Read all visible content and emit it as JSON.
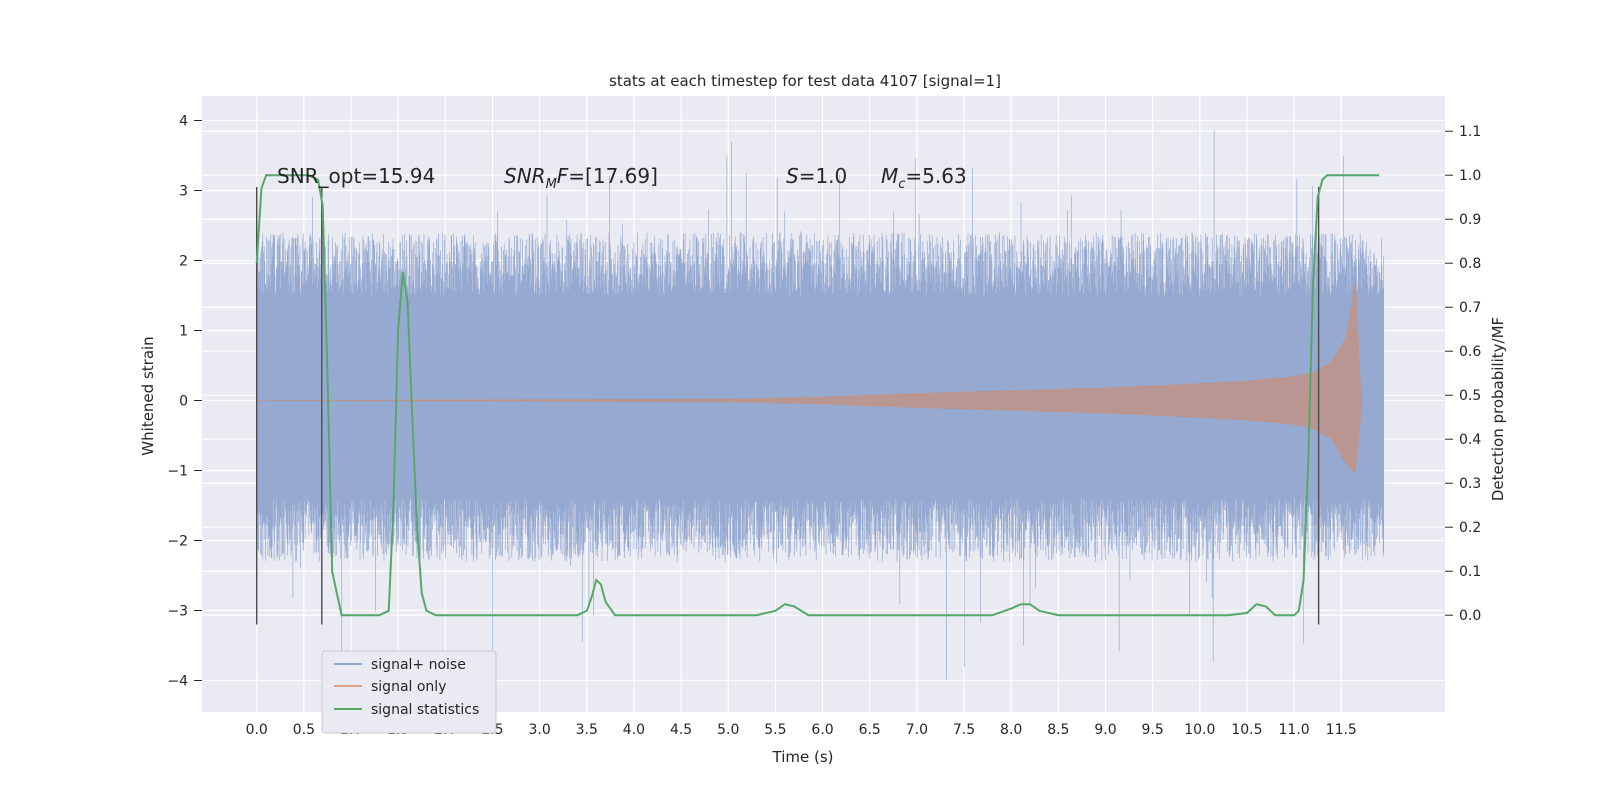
{
  "chart_data": {
    "type": "line",
    "title": "stats at each timestep for test data 4107 [signal=1]",
    "xlabel": "Time (s)",
    "ylabel": "Whitened strain",
    "y2label": "Detection probability/MF",
    "xlim": [
      -0.58,
      12.6
    ],
    "ylim": [
      -4.45,
      4.35
    ],
    "y2lim": [
      -0.22,
      1.18
    ],
    "x_ticks": [
      0.0,
      0.5,
      1.0,
      1.5,
      2.0,
      2.5,
      3.0,
      3.5,
      4.0,
      4.5,
      5.0,
      5.5,
      6.0,
      6.5,
      7.0,
      7.5,
      8.0,
      8.5,
      9.0,
      9.5,
      10.0,
      10.5,
      11.0,
      11.5
    ],
    "x_tick_labels": [
      "0.0",
      "0.5",
      "1.0",
      "1.5",
      "2.0",
      "2.5",
      "3.0",
      "3.5",
      "4.0",
      "4.5",
      "5.0",
      "5.5",
      "6.0",
      "6.5",
      "7.0",
      "7.5",
      "8.0",
      "8.5",
      "9.0",
      "9.5",
      "10.0",
      "10.5",
      "11.0",
      "11.5"
    ],
    "y_ticks": [
      -4,
      -3,
      -2,
      -1,
      0,
      1,
      2,
      3,
      4
    ],
    "y_tick_labels": [
      "−4",
      "−3",
      "−2",
      "−1",
      "0",
      "1",
      "2",
      "3",
      "4"
    ],
    "y2_ticks": [
      0.0,
      0.1,
      0.2,
      0.3,
      0.4,
      0.5,
      0.6,
      0.7,
      0.8,
      0.9,
      1.0,
      1.1
    ],
    "y2_tick_labels": [
      "0.0",
      "0.1",
      "0.2",
      "0.3",
      "0.4",
      "0.5",
      "0.6",
      "0.7",
      "0.8",
      "0.9",
      "1.0",
      "1.1"
    ],
    "grid": true,
    "legend_position": "bottom-left",
    "legend": [
      "signal+ noise",
      "signal only",
      "signal statistics"
    ],
    "colors": {
      "background": "#eaeaf2",
      "grid": "#ffffff",
      "noise": "#91a6cf",
      "signal": "#dd8452",
      "stats": "#55a868",
      "vlines": "#4d4d4d"
    },
    "series": [
      {
        "name": "signal+ noise",
        "duration": 11.95,
        "typical_range": [
          -1.55,
          1.65
        ],
        "peak_max": 3.9,
        "peak_min": -4.1
      },
      {
        "name": "signal only",
        "envelope_x": [
          0.0,
          5.0,
          6.0,
          7.0,
          8.0,
          9.0,
          10.0,
          10.5,
          11.0,
          11.2,
          11.4,
          11.55,
          11.65,
          11.7,
          11.72
        ],
        "envelope_y": [
          0.0,
          0.02,
          0.05,
          0.1,
          0.14,
          0.18,
          0.24,
          0.28,
          0.34,
          0.4,
          0.55,
          0.9,
          1.7,
          0.3,
          0.0
        ]
      },
      {
        "name": "signal statistics",
        "x": [
          0.0,
          0.05,
          0.1,
          0.15,
          0.25,
          0.4,
          0.55,
          0.65,
          0.7,
          0.75,
          0.8,
          0.9,
          1.0,
          1.3,
          1.4,
          1.45,
          1.5,
          1.55,
          1.6,
          1.65,
          1.7,
          1.75,
          1.8,
          1.9,
          2.0,
          3.4,
          3.5,
          3.55,
          3.6,
          3.65,
          3.7,
          3.8,
          4.0,
          5.0,
          5.3,
          5.5,
          5.6,
          5.7,
          5.85,
          6.0,
          7.0,
          7.5,
          7.8,
          8.0,
          8.1,
          8.2,
          8.3,
          8.5,
          9.0,
          10.0,
          10.3,
          10.5,
          10.6,
          10.7,
          10.8,
          11.0,
          11.05,
          11.1,
          11.15,
          11.2,
          11.25,
          11.3,
          11.35,
          11.45,
          11.6,
          11.9
        ],
        "y": [
          0.8,
          0.97,
          1.0,
          1.0,
          1.0,
          1.0,
          1.0,
          0.99,
          0.93,
          0.55,
          0.1,
          0.0,
          0.0,
          0.0,
          0.01,
          0.25,
          0.65,
          0.78,
          0.71,
          0.45,
          0.2,
          0.05,
          0.01,
          0.0,
          0.0,
          0.0,
          0.01,
          0.04,
          0.08,
          0.07,
          0.03,
          0.0,
          0.0,
          0.0,
          0.0,
          0.01,
          0.025,
          0.02,
          0.0,
          0.0,
          0.0,
          0.0,
          0.0,
          0.015,
          0.025,
          0.025,
          0.01,
          0.0,
          0.0,
          0.0,
          0.0,
          0.005,
          0.025,
          0.02,
          0.0,
          0.0,
          0.01,
          0.08,
          0.35,
          0.75,
          0.95,
          0.99,
          1.0,
          1.0,
          1.0,
          1.0
        ]
      }
    ],
    "vertical_lines_x": [
      0.0,
      0.69,
      11.26
    ],
    "annotations": [
      {
        "kind": "plain",
        "text": "SNR_opt=15.94"
      },
      {
        "kind": "snr_mf",
        "text": "SNR",
        "sub": "M",
        "tail": "F",
        "value": "=[17.69]"
      },
      {
        "kind": "italic",
        "text": "S",
        "value": "=1.0"
      },
      {
        "kind": "mc",
        "text": "M",
        "sub": "c",
        "value": "=5.63"
      }
    ]
  }
}
